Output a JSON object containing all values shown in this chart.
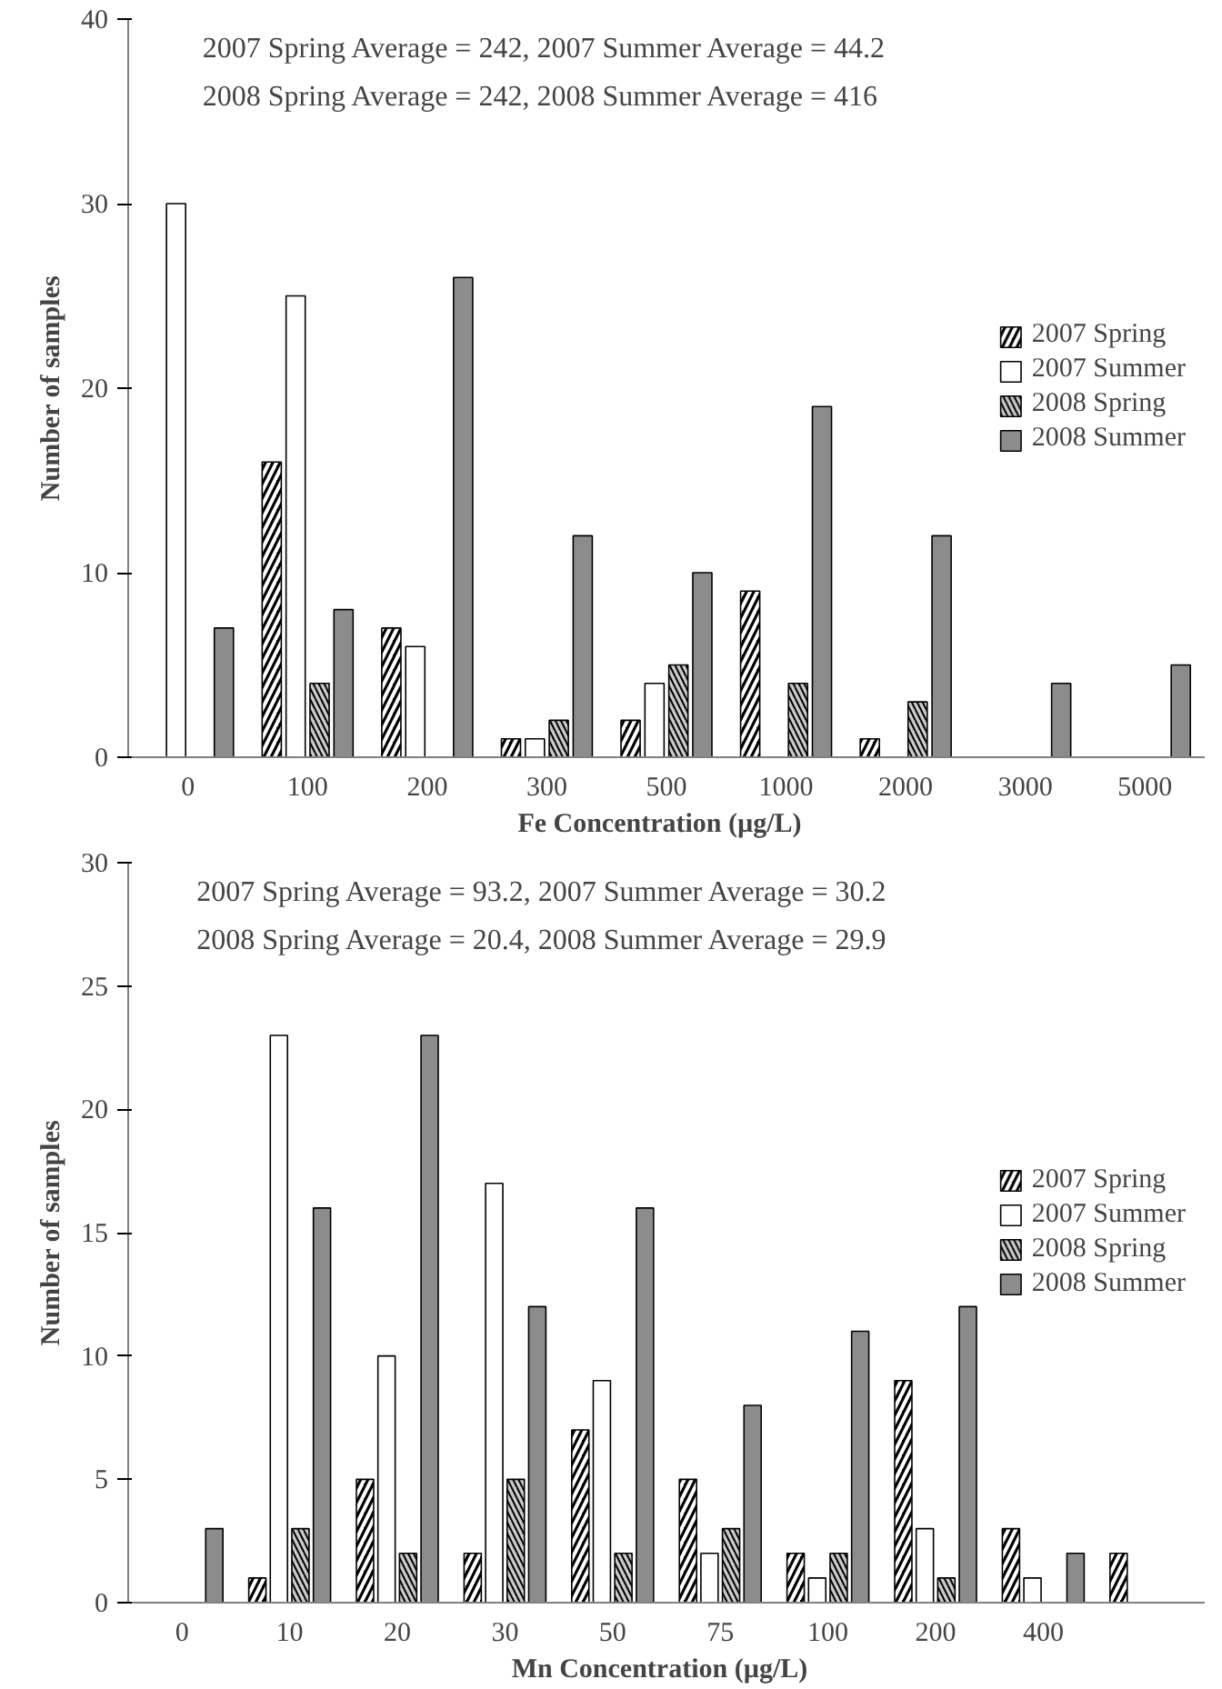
{
  "chart_data": [
    {
      "type": "bar",
      "xlabel": "Fe   Concentration (µg/L)",
      "ylabel": "Number of samples",
      "annotations": [
        "2007 Spring Average = 242,  2007 Summer Average = 44.2",
        "2008 Spring Average = 242,  2008 Summer Average = 416"
      ],
      "categories": [
        "0",
        "100",
        "200",
        "300",
        "500",
        "1000",
        "2000",
        "3000",
        "5000"
      ],
      "series": [
        {
          "name": "2007 Spring",
          "color": "#000000",
          "values": [
            0,
            16,
            7,
            1,
            2,
            9,
            1,
            0,
            0
          ]
        },
        {
          "name": "2007 Summer",
          "color": "#ffffff",
          "values": [
            30,
            25,
            6,
            1,
            4,
            0,
            0,
            0,
            0
          ]
        },
        {
          "name": "2008 Spring",
          "color": "#c8c8c8",
          "values": [
            0,
            4,
            0,
            2,
            5,
            4,
            3,
            0,
            0
          ]
        },
        {
          "name": "2008 Summer",
          "color": "#8c8c8c",
          "values": [
            7,
            8,
            26,
            12,
            10,
            19,
            12,
            4,
            5
          ]
        }
      ],
      "ylim": [
        0,
        40
      ],
      "yticks": [
        0,
        10,
        20,
        30,
        40
      ],
      "grid": false,
      "legend": "right"
    },
    {
      "type": "bar",
      "xlabel": "Mn   Concentration (µg/L)",
      "ylabel": "Number of samples",
      "annotations": [
        "2007 Spring Average = 93.2,  2007 Summer Average = 30.2",
        "2008 Spring Average = 20.4, 2008 Summer Average = 29.9"
      ],
      "categories": [
        "0",
        "10",
        "20",
        "30",
        "50",
        "75",
        "100",
        "200",
        "400",
        null
      ],
      "series": [
        {
          "name": "2007 Spring",
          "color": "#000000",
          "values": [
            0,
            1,
            5,
            2,
            7,
            5,
            2,
            9,
            3,
            2
          ]
        },
        {
          "name": "2007 Summer",
          "color": "#ffffff",
          "values": [
            0,
            23,
            10,
            17,
            9,
            2,
            1,
            3,
            1,
            0
          ]
        },
        {
          "name": "2008 Spring",
          "color": "#c8c8c8",
          "values": [
            0,
            3,
            2,
            5,
            2,
            3,
            2,
            1,
            0,
            0
          ]
        },
        {
          "name": "2008 Summer",
          "color": "#8c8c8c",
          "values": [
            3,
            16,
            23,
            12,
            16,
            8,
            11,
            12,
            2,
            0
          ]
        }
      ],
      "ylim": [
        0,
        30
      ],
      "yticks": [
        0,
        5,
        10,
        15,
        20,
        25,
        30
      ],
      "grid": false,
      "legend": "right"
    }
  ]
}
